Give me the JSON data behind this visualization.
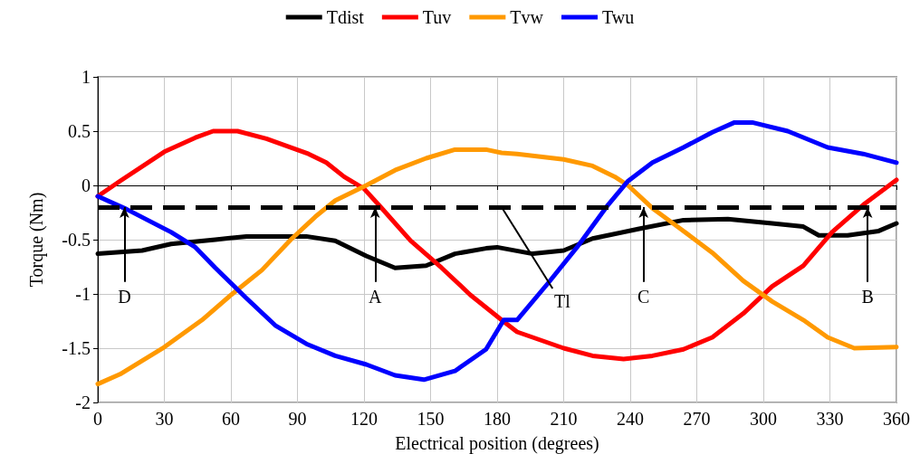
{
  "chart_data": {
    "type": "line",
    "xlabel": "Electrical position (degrees)",
    "ylabel": "Torque (Nm)",
    "xlim": [
      0,
      360
    ],
    "xticks": [
      0,
      30,
      60,
      90,
      120,
      150,
      180,
      210,
      240,
      270,
      300,
      330,
      360
    ],
    "ylim": [
      -2,
      1
    ],
    "yticks": [
      -2,
      -1.5,
      -1,
      -0.5,
      0,
      0.5,
      1
    ],
    "grid": true,
    "legend": "top",
    "marker": "none",
    "line_style": "solid",
    "series": [
      {
        "name": "Tdist",
        "color": "#000000",
        "x": [
          0,
          20,
          33,
          53,
          67,
          94,
          107,
          121,
          134,
          148,
          161,
          175,
          180,
          196,
          210,
          223,
          244,
          264,
          284,
          304,
          318,
          325,
          338,
          352,
          360
        ],
        "values": [
          -0.63,
          -0.6,
          -0.54,
          -0.5,
          -0.47,
          -0.47,
          -0.51,
          -0.65,
          -0.76,
          -0.74,
          -0.63,
          -0.58,
          -0.57,
          -0.63,
          -0.6,
          -0.49,
          -0.4,
          -0.32,
          -0.31,
          -0.35,
          -0.38,
          -0.46,
          -0.46,
          -0.42,
          -0.35
        ]
      },
      {
        "name": "Tuv",
        "color": "#ff0000",
        "x": [
          0,
          10,
          30,
          44,
          52,
          63,
          76,
          95,
          103,
          111,
          120,
          128,
          141,
          155,
          168,
          182,
          189,
          210,
          223,
          237,
          250,
          264,
          277,
          291,
          304,
          318,
          331,
          345,
          360
        ],
        "values": [
          -0.1,
          0.04,
          0.31,
          0.44,
          0.5,
          0.5,
          0.43,
          0.29,
          0.21,
          0.08,
          -0.03,
          -0.21,
          -0.51,
          -0.76,
          -1.01,
          -1.24,
          -1.35,
          -1.5,
          -1.57,
          -1.6,
          -1.57,
          -1.51,
          -1.4,
          -1.18,
          -0.93,
          -0.74,
          -0.43,
          -0.18,
          0.05
        ]
      },
      {
        "name": "Tvw",
        "color": "#ff9900",
        "x": [
          0,
          10,
          30,
          47,
          60,
          74,
          87,
          98,
          107,
          121,
          134,
          148,
          161,
          175,
          182,
          189,
          210,
          223,
          233,
          239,
          250,
          264,
          277,
          291,
          304,
          318,
          329,
          341,
          360
        ],
        "values": [
          -1.83,
          -1.74,
          -1.49,
          -1.24,
          -1.01,
          -0.78,
          -0.5,
          -0.29,
          -0.14,
          0,
          0.14,
          0.25,
          0.33,
          0.33,
          0.3,
          0.29,
          0.24,
          0.18,
          0.08,
          0,
          -0.21,
          -0.42,
          -0.62,
          -0.88,
          -1.07,
          -1.24,
          -1.4,
          -1.5,
          -1.49
        ]
      },
      {
        "name": "Twu",
        "color": "#0000ff",
        "x": [
          0,
          13,
          33,
          44,
          53,
          67,
          80,
          94,
          107,
          121,
          134,
          147,
          161,
          175,
          183,
          189,
          203,
          216,
          230,
          239,
          250,
          264,
          277,
          287,
          295,
          311,
          329,
          345,
          360
        ],
        "values": [
          -0.1,
          -0.22,
          -0.43,
          -0.57,
          -0.76,
          -1.04,
          -1.29,
          -1.46,
          -1.57,
          -1.65,
          -1.75,
          -1.79,
          -1.71,
          -1.51,
          -1.24,
          -1.24,
          -0.9,
          -0.57,
          -0.18,
          0.04,
          0.21,
          0.35,
          0.49,
          0.58,
          0.58,
          0.5,
          0.35,
          0.29,
          0.21
        ]
      }
    ],
    "ref_lines": [
      {
        "axis": "y",
        "value": -0.2,
        "label": "Tl",
        "color": "#000000",
        "line_style": "dashed"
      }
    ],
    "annotations": [
      {
        "text": "D",
        "x": 12,
        "y": -0.2
      },
      {
        "text": "A",
        "x": 125,
        "y": -0.2
      },
      {
        "text": "C",
        "x": 246,
        "y": -0.2
      },
      {
        "text": "B",
        "x": 347,
        "y": -0.2
      }
    ]
  }
}
